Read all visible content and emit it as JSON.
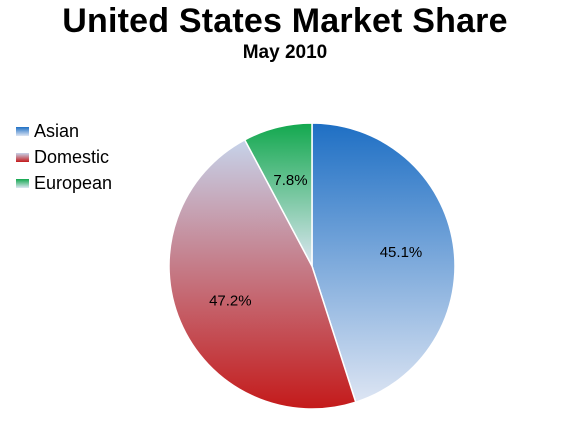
{
  "chart_data": {
    "type": "pie",
    "title": "United States Market Share",
    "subtitle": "May 2010",
    "slices": [
      {
        "name": "Asian",
        "value": 45.1,
        "label": "45.1%",
        "color_top": "#1e6fc4",
        "color_bottom": "#dde5f3"
      },
      {
        "name": "Domestic",
        "value": 47.2,
        "label": "47.2%",
        "color_top": "#c6d3ea",
        "color_bottom": "#c41a1a"
      },
      {
        "name": "European",
        "value": 7.8,
        "label": "7.8%",
        "color_top": "#12a84e",
        "color_bottom": "#dde6f2"
      }
    ],
    "legend": [
      "Asian",
      "Domestic",
      "European"
    ],
    "legend_position": "left"
  }
}
